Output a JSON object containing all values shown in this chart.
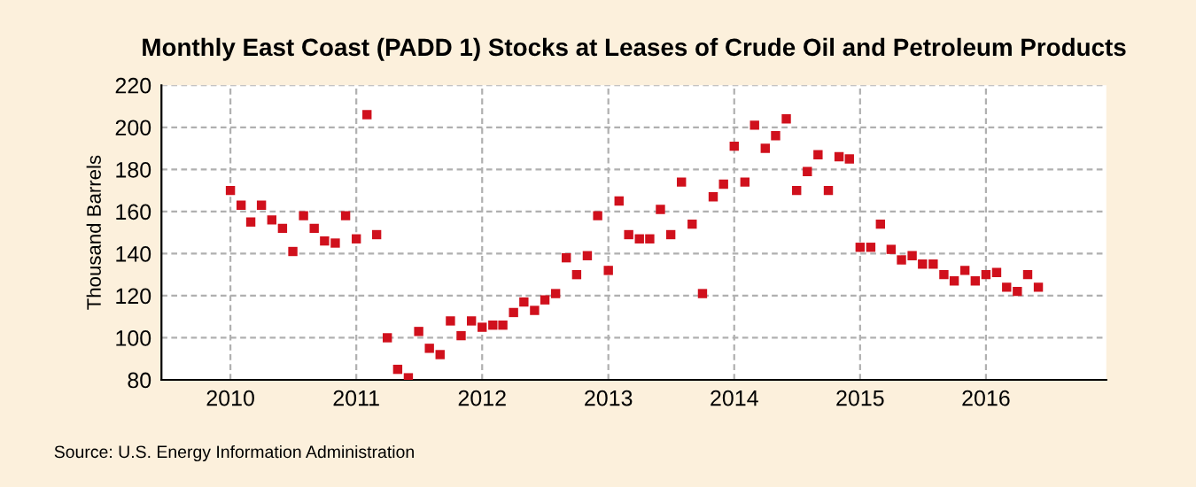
{
  "chart_data": {
    "type": "scatter",
    "title": "Monthly East Coast (PADD 1) Stocks at Leases of Crude Oil and Petroleum Products",
    "ylabel": "Thousand Barrels",
    "annotations": [
      "Source: U.S. Energy Information Administration"
    ],
    "x": [
      "2010-01",
      "2010-02",
      "2010-03",
      "2010-04",
      "2010-05",
      "2010-06",
      "2010-07",
      "2010-08",
      "2010-09",
      "2010-10",
      "2010-11",
      "2010-12",
      "2011-01",
      "2011-02",
      "2011-03",
      "2011-04",
      "2011-05",
      "2011-06",
      "2011-07",
      "2011-08",
      "2011-09",
      "2011-10",
      "2011-11",
      "2011-12",
      "2012-01",
      "2012-02",
      "2012-03",
      "2012-04",
      "2012-05",
      "2012-06",
      "2012-07",
      "2012-08",
      "2012-09",
      "2012-10",
      "2012-11",
      "2012-12",
      "2013-01",
      "2013-02",
      "2013-03",
      "2013-04",
      "2013-05",
      "2013-06",
      "2013-07",
      "2013-08",
      "2013-09",
      "2013-10",
      "2013-11",
      "2013-12",
      "2014-01",
      "2014-02",
      "2014-03",
      "2014-04",
      "2014-05",
      "2014-06",
      "2014-07",
      "2014-08",
      "2014-09",
      "2014-10",
      "2014-11",
      "2014-12",
      "2015-01",
      "2015-02",
      "2015-03",
      "2015-04",
      "2015-05",
      "2015-06",
      "2015-07",
      "2015-08",
      "2015-09",
      "2015-10",
      "2015-11",
      "2015-12",
      "2016-01",
      "2016-02",
      "2016-03",
      "2016-04",
      "2016-05",
      "2016-06"
    ],
    "series": [
      {
        "color": "#d0101c",
        "values": [
          170,
          163,
          155,
          163,
          156,
          152,
          141,
          158,
          152,
          146,
          145,
          158,
          147,
          206,
          149,
          100,
          85,
          81,
          103,
          95,
          92,
          108,
          101,
          108,
          105,
          106,
          106,
          112,
          117,
          113,
          118,
          121,
          138,
          130,
          139,
          158,
          132,
          165,
          149,
          147,
          147,
          161,
          149,
          174,
          154,
          121,
          167,
          173,
          191,
          174,
          201,
          190,
          196,
          204,
          170,
          179,
          187,
          170,
          186,
          185,
          143,
          143,
          154,
          142,
          137,
          139,
          135,
          135,
          130,
          127,
          132,
          127,
          130,
          131,
          124,
          122,
          130,
          124
        ]
      }
    ],
    "marker": "square",
    "xlim": [
      "2009-06-15",
      "2016-12-15"
    ],
    "xticks": [
      {
        "value": "2010-01-01",
        "label": "2010"
      },
      {
        "value": "2011-01-01",
        "label": "2011"
      },
      {
        "value": "2012-01-01",
        "label": "2012"
      },
      {
        "value": "2013-01-01",
        "label": "2013"
      },
      {
        "value": "2014-01-01",
        "label": "2014"
      },
      {
        "value": "2015-01-01",
        "label": "2015"
      },
      {
        "value": "2016-01-01",
        "label": "2016"
      }
    ],
    "ylim": [
      80,
      220
    ],
    "yticks": [
      80,
      100,
      120,
      140,
      160,
      180,
      200,
      220
    ],
    "grid": true
  }
}
